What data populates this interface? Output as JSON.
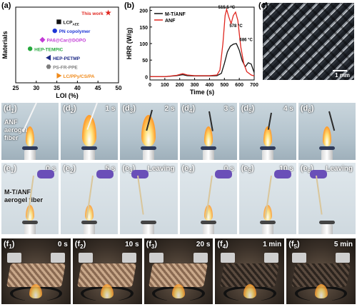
{
  "panels": {
    "a": {
      "label": "(a)"
    },
    "b": {
      "label": "(b)"
    },
    "c": {
      "label": "(c)",
      "scale_bar": "1 mm"
    }
  },
  "chart_data": [
    {
      "type": "scatter",
      "xlabel": "LOI (%)",
      "ylabel": "Materials",
      "xlim": [
        25,
        50
      ],
      "xticks": [
        25,
        30,
        35,
        40,
        45,
        50
      ],
      "series": [
        {
          "name": "This work",
          "x": 47.5,
          "y": 7,
          "marker": "star",
          "color": "#e0261f"
        },
        {
          "name": "LCP_AEE",
          "x": 35.5,
          "y": 6,
          "marker": "square",
          "color": "#111111"
        },
        {
          "name": "PN copolymer",
          "x": 34.5,
          "y": 5,
          "marker": "circle",
          "color": "#1d35d6"
        },
        {
          "name": "PA6@Car@DOPO",
          "x": 31.5,
          "y": 4,
          "marker": "diamond",
          "color": "#c23bd6"
        },
        {
          "name": "HEP-TEMPIC",
          "x": 28.5,
          "y": 3,
          "marker": "circle",
          "color": "#25a83c"
        },
        {
          "name": "HEP-PETMP",
          "x": 33.0,
          "y": 2,
          "marker": "triangle-left",
          "color": "#1d2a86"
        },
        {
          "name": "PS-FR-PPE",
          "x": 33.0,
          "y": 1,
          "marker": "hexagon",
          "color": "#7d7d7d"
        },
        {
          "name": "LC/PPy/CS/PA",
          "x": 35.5,
          "y": 0,
          "marker": "triangle-right",
          "color": "#f08a1a"
        }
      ]
    },
    {
      "type": "line",
      "xlabel": "Time (s)",
      "ylabel": "HRR (W/g)",
      "xlim": [
        0,
        700
      ],
      "ylim": [
        -10,
        210
      ],
      "xticks": [
        0,
        100,
        200,
        300,
        400,
        500,
        600,
        700
      ],
      "yticks": [
        0,
        50,
        100,
        150,
        200
      ],
      "legend": "top-left",
      "annotations": [
        "515.5 °C",
        "578 °C",
        "686 °C"
      ],
      "series": [
        {
          "name": "M-T/ANF",
          "color": "#111111",
          "x": [
            0,
            100,
            180,
            220,
            250,
            300,
            400,
            450,
            480,
            500,
            520,
            540,
            560,
            580,
            600,
            620,
            640,
            660,
            680,
            700
          ],
          "y": [
            0,
            0,
            3,
            6,
            3,
            2,
            2,
            3,
            10,
            40,
            75,
            92,
            98,
            100,
            80,
            48,
            30,
            42,
            38,
            12
          ]
        },
        {
          "name": "ANF",
          "color": "#e0261f",
          "x": [
            0,
            100,
            180,
            220,
            250,
            300,
            400,
            450,
            470,
            490,
            505,
            515,
            530,
            545,
            560,
            575,
            590,
            610,
            630,
            650,
            680,
            700
          ],
          "y": [
            0,
            0,
            4,
            9,
            5,
            3,
            3,
            5,
            20,
            100,
            185,
            203,
            180,
            160,
            185,
            195,
            170,
            90,
            40,
            15,
            5,
            2
          ]
        }
      ]
    }
  ],
  "row_d": {
    "material_note": "ANF aerogel fiber",
    "tiles": [
      {
        "label": "d",
        "sub": "1",
        "time": ""
      },
      {
        "label": "d",
        "sub": "2",
        "time": "1 s"
      },
      {
        "label": "d",
        "sub": "3",
        "time": "2 s"
      },
      {
        "label": "d",
        "sub": "4",
        "time": "3 s"
      },
      {
        "label": "d",
        "sub": "5",
        "time": "4 s"
      },
      {
        "label": "d",
        "sub": "6",
        "time": ""
      }
    ]
  },
  "row_e": {
    "material_note": "M-T/ANF aerogel fiber",
    "tiles": [
      {
        "label": "e",
        "sub": "1",
        "time": "0 s"
      },
      {
        "label": "e",
        "sub": "2",
        "time": "5 s"
      },
      {
        "label": "e",
        "sub": "3",
        "time": "Leaving"
      },
      {
        "label": "e",
        "sub": "4",
        "time": "0 s"
      },
      {
        "label": "e",
        "sub": "5",
        "time": "10 s"
      },
      {
        "label": "e",
        "sub": "6",
        "time": "Leaving"
      }
    ]
  },
  "row_f": {
    "tiles": [
      {
        "label": "f",
        "sub": "1",
        "time": "0 s"
      },
      {
        "label": "f",
        "sub": "2",
        "time": "10 s"
      },
      {
        "label": "f",
        "sub": "3",
        "time": "20 s"
      },
      {
        "label": "f",
        "sub": "4",
        "time": "1 min"
      },
      {
        "label": "f",
        "sub": "5",
        "time": "5 min"
      }
    ]
  }
}
